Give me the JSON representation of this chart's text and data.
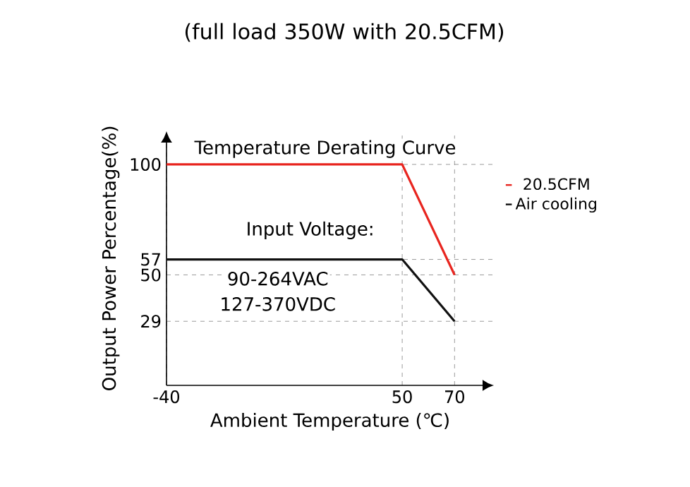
{
  "chart_data": {
    "type": "line",
    "title": "(full load 350W with 20.5CFM)",
    "xlabel": "Ambient Temperature (℃)",
    "ylabel": "Output Power Percentage(%)",
    "xlim": [
      -40,
      85
    ],
    "ylim": [
      0,
      115
    ],
    "xticks": [
      -40,
      50,
      70
    ],
    "yticks": [
      29,
      50,
      57,
      100
    ],
    "grid": true,
    "legend": "right",
    "marker": "none",
    "line_style": "solid",
    "annotations": [
      "Temperature Derating Curve",
      "Input Voltage:",
      "90-264VAC",
      "127-370VDC"
    ],
    "series": [
      {
        "name": "20.5CFM",
        "color": "#e8251f",
        "x": [
          -40,
          50,
          70
        ],
        "values": [
          100,
          100,
          50
        ]
      },
      {
        "name": "Air cooling",
        "color": "#111111",
        "x": [
          -40,
          50,
          70
        ],
        "values": [
          57,
          57,
          29
        ]
      }
    ]
  }
}
